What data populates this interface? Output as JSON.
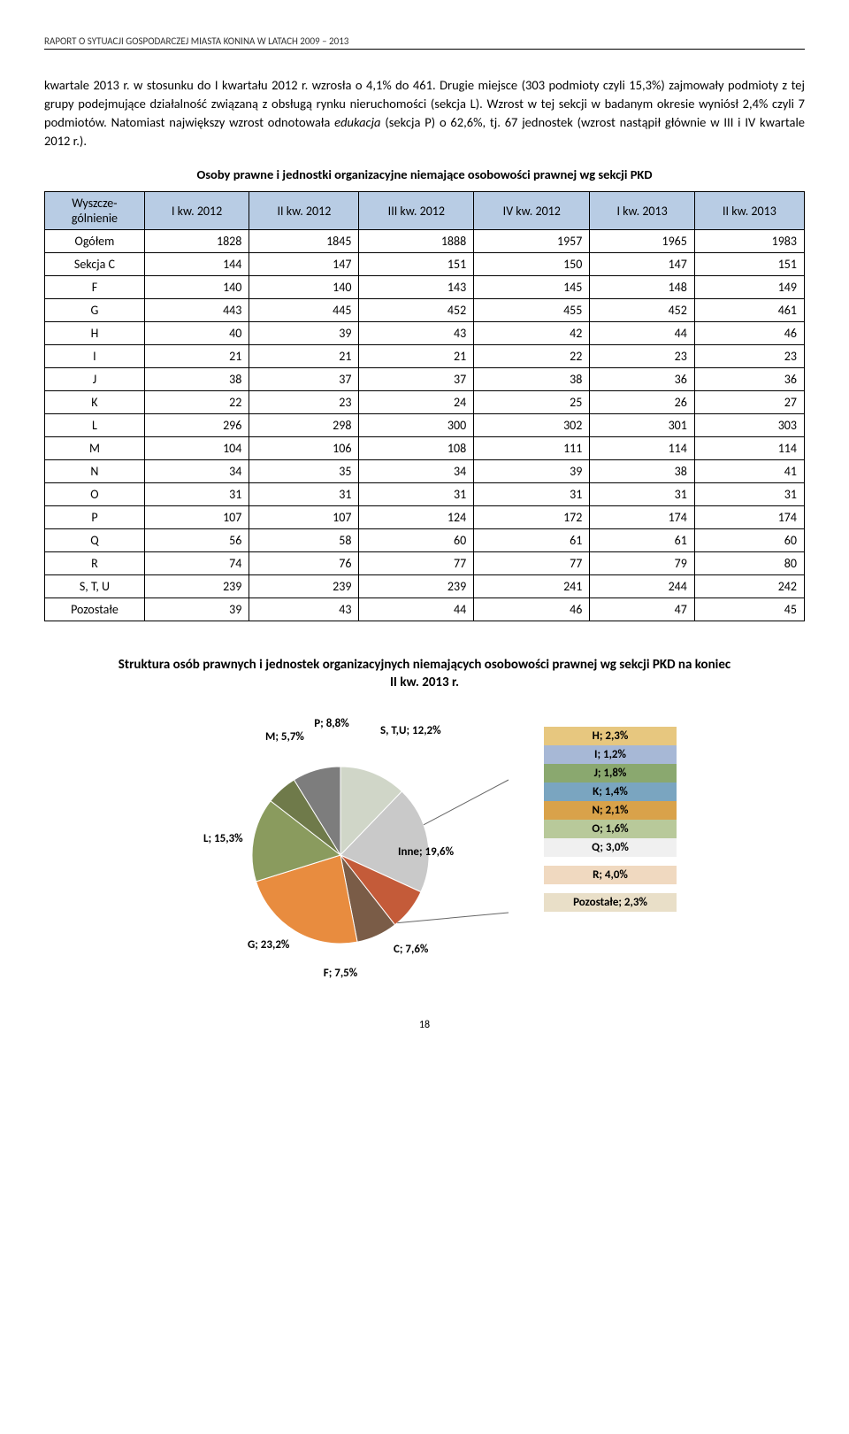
{
  "header": "RAPORT O SYTUACJI GOSPODARCZEJ MIASTA KONINA W LATACH 2009 – 2013",
  "paragraph": {
    "p1a": "kwartale 2013 r. w stosunku do I kwartału 2012 r. wzrosła o 4,1% do 461. Drugie miejsce (303 podmioty czyli 15,3%) zajmowały podmioty z tej grupy podejmujące działalność związaną z obsługą rynku nieruchomości (sekcja L). Wzrost w tej sekcji w badanym okresie wyniósł 2,4% czyli 7 podmiotów. Natomiast największy wzrost odnotowała ",
    "p1_italic": "edukacja",
    "p1b": " (sekcja P) o 62,6%, tj. 67 jednostek (wzrost nastąpił głównie w III i IV kwartale 2012 r.)."
  },
  "table_title": "Osoby prawne i jednostki organizacyjne niemające osobowości prawnej wg sekcji PKD",
  "table": {
    "columns": [
      "Wyszcze-\ngólnienie",
      "I kw. 2012",
      "II kw. 2012",
      "III kw. 2012",
      "IV kw. 2012",
      "I kw. 2013",
      "II kw. 2013"
    ],
    "rows": [
      [
        "Ogółem",
        "1828",
        "1845",
        "1888",
        "1957",
        "1965",
        "1983"
      ],
      [
        "Sekcja C",
        "144",
        "147",
        "151",
        "150",
        "147",
        "151"
      ],
      [
        "F",
        "140",
        "140",
        "143",
        "145",
        "148",
        "149"
      ],
      [
        "G",
        "443",
        "445",
        "452",
        "455",
        "452",
        "461"
      ],
      [
        "H",
        "40",
        "39",
        "43",
        "42",
        "44",
        "46"
      ],
      [
        "I",
        "21",
        "21",
        "21",
        "22",
        "23",
        "23"
      ],
      [
        "J",
        "38",
        "37",
        "37",
        "38",
        "36",
        "36"
      ],
      [
        "K",
        "22",
        "23",
        "24",
        "25",
        "26",
        "27"
      ],
      [
        "L",
        "296",
        "298",
        "300",
        "302",
        "301",
        "303"
      ],
      [
        "M",
        "104",
        "106",
        "108",
        "111",
        "114",
        "114"
      ],
      [
        "N",
        "34",
        "35",
        "34",
        "39",
        "38",
        "41"
      ],
      [
        "O",
        "31",
        "31",
        "31",
        "31",
        "31",
        "31"
      ],
      [
        "P",
        "107",
        "107",
        "124",
        "172",
        "174",
        "174"
      ],
      [
        "Q",
        "56",
        "58",
        "60",
        "61",
        "61",
        "60"
      ],
      [
        "R",
        "74",
        "76",
        "77",
        "77",
        "79",
        "80"
      ],
      [
        "S, T, U",
        "239",
        "239",
        "239",
        "241",
        "244",
        "242"
      ],
      [
        "Pozostałe",
        "39",
        "43",
        "44",
        "46",
        "47",
        "45"
      ]
    ]
  },
  "chart": {
    "title": "Struktura osób prawnych i jednostek organizacyjnych niemających osobowości prawnej wg sekcji PKD na koniec II kw. 2013 r.",
    "type": "pie",
    "slices": [
      {
        "label": "S, T,U; 12,2%",
        "value": 12.2,
        "color": "#d0d6c8"
      },
      {
        "label": "Inne; 19,6%",
        "value": 19.6,
        "color": "#c9c9c9"
      },
      {
        "label": "C; 7,6%",
        "value": 7.6,
        "color": "#c45b39"
      },
      {
        "label": "F; 7,5%",
        "value": 7.5,
        "color": "#7a5c47"
      },
      {
        "label": "G; 23,2%",
        "value": 23.2,
        "color": "#e88c3f"
      },
      {
        "label": "L; 15,3%",
        "value": 15.3,
        "color": "#8a9b5e"
      },
      {
        "label": "M; 5,7%",
        "value": 5.7,
        "color": "#6f7a4a"
      },
      {
        "label": "P; 8,8%",
        "value": 8.8,
        "color": "#7d7d7d"
      }
    ],
    "pie_bg": "#ffffff",
    "label_fontsize": 13,
    "legend": [
      {
        "text": "H; 2,3%",
        "bg": "#e7c77f"
      },
      {
        "text": "I; 1,2%",
        "bg": "#a7b8d6"
      },
      {
        "text": "J; 1,8%",
        "bg": "#8aa86f"
      },
      {
        "text": "K; 1,4%",
        "bg": "#7aa5c0"
      },
      {
        "text": "N; 2,1%",
        "bg": "#d9a24a"
      },
      {
        "text": "O; 1,6%",
        "bg": "#b8c99a"
      },
      {
        "text": "Q; 3,0%",
        "bg": "#f0f0f0"
      },
      {
        "text": "",
        "bg": "#ffffff"
      },
      {
        "text": "R; 4,0%",
        "bg": "#f0d9c0"
      },
      {
        "text": "",
        "bg": "#ffffff"
      },
      {
        "text": "Pozostałe; 2,3%",
        "bg": "#e9dfc8"
      }
    ],
    "leader_color": "#666"
  },
  "page_number": "18"
}
